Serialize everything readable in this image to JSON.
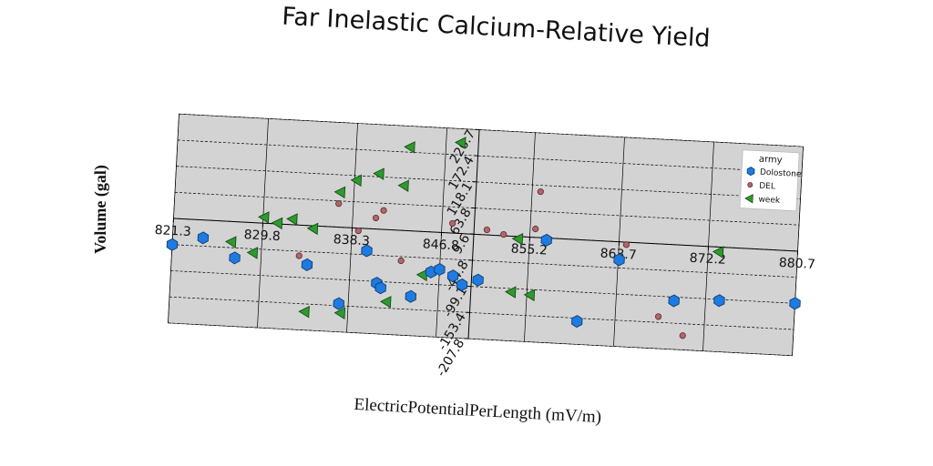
{
  "chart_data": {
    "type": "scatter",
    "title": "Far Inelastic Calcium-Relative Yield",
    "xlabel": "ElectricPotentialPerLength (mV/m)",
    "ylabel": "Volume (gal)",
    "xlim": [
      821.3,
      880.7
    ],
    "ylim": [
      -207.8,
      226.7
    ],
    "x_ticks": [
      "821.3",
      "829.8",
      "838.3",
      "846.8",
      "855.2",
      "863.7",
      "872.2",
      "880.7"
    ],
    "y_ticks": [
      "-207.8",
      "-153.4",
      "-99.1",
      "-44.8",
      "9.6",
      "63.8",
      "118.1",
      "172.4",
      "226.7"
    ],
    "grid": true,
    "legend": {
      "title": "army",
      "position": "top-right"
    },
    "colors": {
      "Dolostone": "#1f7be0",
      "DEL": "#b4656b",
      "week": "#2f9a2f",
      "plot_bg": "#d3d3d3"
    },
    "series": [
      {
        "name": "Dolostone",
        "marker": "hexagon",
        "points": [
          [
            821.3,
            -44.8
          ],
          [
            824.2,
            -27.5
          ],
          [
            827.3,
            -65.6
          ],
          [
            834.2,
            -72.0
          ],
          [
            837.4,
            -149.2
          ],
          [
            839.8,
            -36.5
          ],
          [
            840.9,
            -102.6
          ],
          [
            841.3,
            -111.9
          ],
          [
            844.2,
            -126.5
          ],
          [
            846.0,
            -73.5
          ],
          [
            846.8,
            -67.3
          ],
          [
            848.1,
            -79.3
          ],
          [
            849.0,
            -96.7
          ],
          [
            850.5,
            -85.2
          ],
          [
            856.8,
            5.0
          ],
          [
            860.1,
            -160.0
          ],
          [
            863.8,
            -27.8
          ],
          [
            869.2,
            -106.8
          ],
          [
            873.5,
            -101.5
          ],
          [
            880.7,
            -99.1
          ]
        ]
      },
      {
        "name": "DEL",
        "marker": "circle",
        "points": [
          [
            833.4,
            -54.2
          ],
          [
            836.9,
            58.3
          ],
          [
            838.9,
            4.0
          ],
          [
            840.5,
            32.6
          ],
          [
            841.2,
            49.0
          ],
          [
            843.1,
            -53.5
          ],
          [
            847.8,
            29.6
          ],
          [
            851.1,
            20.0
          ],
          [
            852.7,
            12.2
          ],
          [
            856.0,
            104.9
          ],
          [
            864.4,
            4.4
          ],
          [
            867.8,
            -141.3
          ],
          [
            870.2,
            -178.1
          ],
          [
            855.7,
            27.1
          ]
        ]
      },
      {
        "name": "week",
        "marker": "triangle-left",
        "points": [
          [
            826.9,
            -32.8
          ],
          [
            829.0,
            -52.9
          ],
          [
            829.9,
            22.0
          ],
          [
            831.2,
            11.3
          ],
          [
            832.6,
            21.1
          ],
          [
            834.6,
            3.7
          ],
          [
            837.0,
            82.1
          ],
          [
            838.5,
            108.5
          ],
          [
            840.6,
            124.6
          ],
          [
            843.0,
            102.6
          ],
          [
            843.4,
            183.1
          ],
          [
            848.2,
            197.9
          ],
          [
            854.1,
            4.5
          ],
          [
            853.7,
            -106.4
          ],
          [
            855.5,
            -110.4
          ],
          [
            837.6,
            -168.6
          ],
          [
            834.2,
            -169.6
          ],
          [
            841.9,
            -140.1
          ],
          [
            845.2,
            -80.5
          ],
          [
            873.2,
            -0.7
          ]
        ]
      }
    ]
  }
}
